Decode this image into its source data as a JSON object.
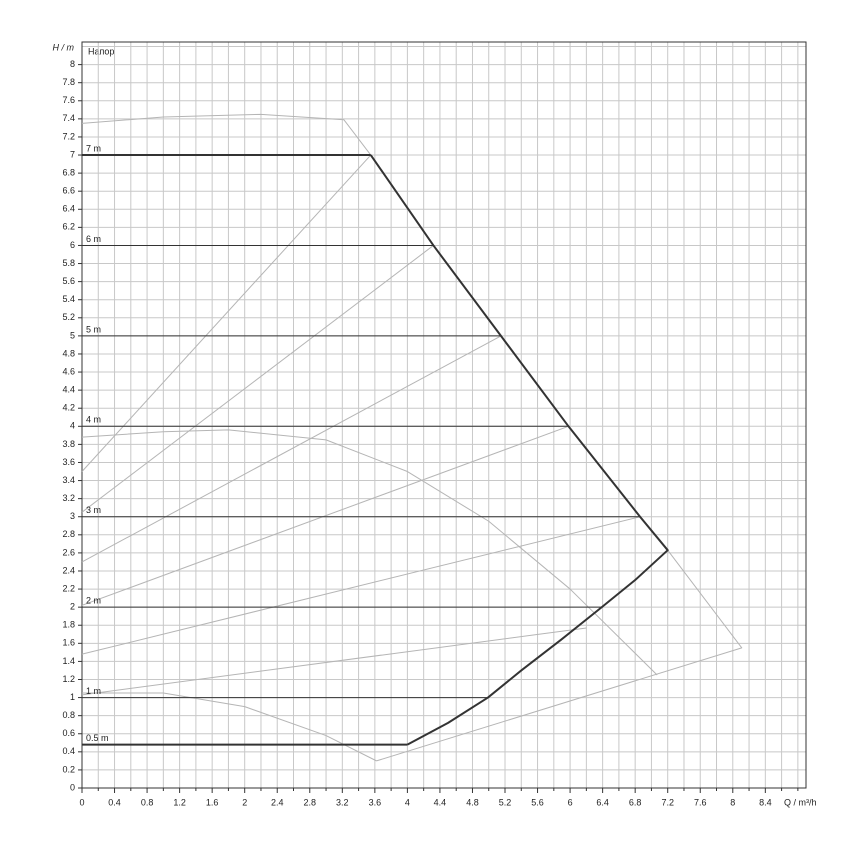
{
  "chart_data": {
    "type": "line",
    "title": "Напор",
    "y_label": "H / m",
    "x_label": "Q / m³/h",
    "xlim": [
      0,
      8.9
    ],
    "ylim": [
      0,
      8.25
    ],
    "xticks": [
      0,
      0.4,
      0.8,
      1.2,
      1.6,
      2,
      2.4,
      2.8,
      3.2,
      3.6,
      4,
      4.4,
      4.8,
      5.2,
      5.6,
      6,
      6.4,
      6.8,
      7.2,
      7.6,
      8,
      8.4
    ],
    "xgrid": [
      0.2,
      0.6,
      1,
      1.4,
      1.8,
      2.2,
      2.6,
      3,
      3.4,
      3.8,
      4.2,
      4.6,
      5,
      5.4,
      5.8,
      6.2,
      6.6,
      7,
      7.4,
      7.8,
      8.2,
      8.6,
      8.8
    ],
    "yticks": [
      0,
      0.2,
      0.4,
      0.6,
      0.8,
      1,
      1.2,
      1.4,
      1.6,
      1.8,
      2,
      2.2,
      2.4,
      2.6,
      2.8,
      3,
      3.2,
      3.4,
      3.6,
      3.8,
      4,
      4.2,
      4.4,
      4.6,
      4.8,
      5,
      5.2,
      5.4,
      5.6,
      5.8,
      6,
      6.2,
      6.4,
      6.6,
      6.8,
      7,
      7.2,
      7.4,
      7.6,
      7.8,
      8
    ],
    "ygrid": [
      8.2
    ],
    "grid": true,
    "series": [
      {
        "color": "#b5b5b5",
        "line_width": 1,
        "x": [
          0,
          1,
          2.2,
          3.22,
          3.55
        ],
        "y": [
          7.35,
          7.42,
          7.45,
          7.39,
          7
        ]
      },
      {
        "color": "#b5b5b5",
        "line_width": 1,
        "x": [
          0,
          3.55
        ],
        "y": [
          3.5,
          7
        ]
      },
      {
        "color": "#b5b5b5",
        "line_width": 1,
        "x": [
          0,
          4.32
        ],
        "y": [
          3.05,
          6
        ]
      },
      {
        "color": "#b5b5b5",
        "line_width": 1,
        "x": [
          0,
          5.15
        ],
        "y": [
          2.5,
          5
        ]
      },
      {
        "color": "#b5b5b5",
        "line_width": 1,
        "x": [
          0,
          5.98
        ],
        "y": [
          2.02,
          4
        ]
      },
      {
        "color": "#b5b5b5",
        "line_width": 1,
        "x": [
          0,
          6.86
        ],
        "y": [
          1.48,
          3
        ]
      },
      {
        "color": "#b5b5b5",
        "line_width": 1,
        "x": [
          0,
          6.2
        ],
        "y": [
          1.03,
          1.77
        ]
      },
      {
        "color": "#b5b5b5",
        "line_width": 1,
        "x": [
          7.2,
          8.11,
          3.62
        ],
        "y": [
          2.63,
          1.55,
          0.3
        ]
      },
      {
        "color": "#b5b5b5",
        "line_width": 1,
        "x": [
          0,
          1,
          2,
          3,
          3.62
        ],
        "y": [
          1.05,
          1.05,
          0.9,
          0.58,
          0.3
        ]
      },
      {
        "color": "#b5b5b5",
        "line_width": 1,
        "x": [
          0,
          1,
          1.8,
          3,
          4,
          5,
          6,
          7.07
        ],
        "y": [
          3.88,
          3.94,
          3.96,
          3.85,
          3.5,
          2.95,
          2.2,
          1.25
        ]
      },
      {
        "name": "7 m",
        "color": "#333333",
        "line_width": 2,
        "x": [
          0,
          3.55
        ],
        "y": [
          7,
          7
        ]
      },
      {
        "name": "6 m",
        "color": "#333333",
        "line_width": 1,
        "x": [
          0,
          4.32
        ],
        "y": [
          6,
          6
        ]
      },
      {
        "name": "5 m",
        "color": "#333333",
        "line_width": 1,
        "x": [
          0,
          5.15
        ],
        "y": [
          5,
          5
        ]
      },
      {
        "name": "4 m",
        "color": "#333333",
        "line_width": 1,
        "x": [
          0,
          5.98
        ],
        "y": [
          4,
          4
        ]
      },
      {
        "name": "3 m",
        "color": "#333333",
        "line_width": 1,
        "x": [
          0,
          6.86
        ],
        "y": [
          3,
          3
        ]
      },
      {
        "name": "2 m",
        "color": "#333333",
        "line_width": 1,
        "x": [
          0,
          6.39
        ],
        "y": [
          2,
          2
        ]
      },
      {
        "name": "1 m",
        "color": "#333333",
        "line_width": 1,
        "x": [
          0,
          4.99
        ],
        "y": [
          1,
          1
        ]
      },
      {
        "name": "0.5 m",
        "color": "#333333",
        "line_width": 2,
        "x": [
          0,
          4
        ],
        "y": [
          0.48,
          0.48
        ]
      },
      {
        "color": "#333333",
        "line_width": 2,
        "x": [
          3.55,
          4.32,
          5.15,
          5.98,
          6.86,
          7.2,
          6.8,
          6.39,
          5.89,
          5.4,
          4.99,
          4.5,
          4
        ],
        "y": [
          7,
          6,
          5,
          4,
          3,
          2.63,
          2.3,
          2,
          1.64,
          1.3,
          1,
          0.72,
          0.48
        ]
      }
    ]
  }
}
